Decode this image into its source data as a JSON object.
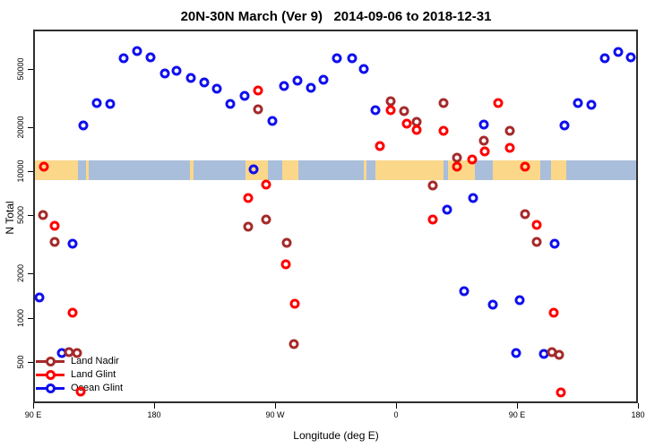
{
  "title": "20N-30N March (Ver 9)   2014-09-06 to 2018-12-31",
  "legend": {
    "items": [
      {
        "label": "Land Nadir",
        "color": "#A52A2A"
      },
      {
        "label": "Land Glint",
        "color": "#FF0000"
      },
      {
        "label": "Ocean Glint",
        "color": "#0F0FEE"
      }
    ]
  },
  "chart_data": {
    "type": "scatter",
    "title": "20N-30N March (Ver 9)   2014-09-06 to 2018-12-31",
    "xlabel": "Longitude (deg E)",
    "ylabel": "N Total",
    "x_axis": {
      "range_deg": [
        90,
        540
      ],
      "ticks": [
        {
          "lon": 90,
          "label": "90 E"
        },
        {
          "lon": 180,
          "label": "180"
        },
        {
          "lon": 270,
          "label": "90 W"
        },
        {
          "lon": 360,
          "label": "0"
        },
        {
          "lon": 450,
          "label": "90 E"
        },
        {
          "lon": 540,
          "label": "180"
        }
      ]
    },
    "y_axis": {
      "scale": "log10",
      "ticks": [
        500,
        1000,
        2000,
        5000,
        10000,
        20000,
        50000
      ],
      "range": [
        260,
        92000
      ]
    },
    "map_band": {
      "description": "20N-30N latitude land/ocean strip",
      "value_range": [
        8900,
        12200
      ],
      "ocean_color": "#A9BEDB",
      "land_color": "#FBD78A",
      "land_segments_deg": [
        [
          90,
          122
        ],
        [
          128,
          130
        ],
        [
          205,
          208
        ],
        [
          246.5,
          263.5
        ],
        [
          274,
          286
        ],
        [
          334.5,
          336.5
        ],
        [
          343,
          394
        ],
        [
          397,
          417.5
        ],
        [
          430.5,
          466
        ],
        [
          474,
          485.5
        ]
      ]
    },
    "series": [
      {
        "name": "Ocean Glint",
        "color": "#0F0FEE",
        "points": [
          [
            126,
            21100
          ],
          [
            136,
            30000
          ],
          [
            146,
            29500
          ],
          [
            156,
            60500
          ],
          [
            166,
            68000
          ],
          [
            176,
            61400
          ],
          [
            186.7,
            47600
          ],
          [
            195.3,
            49700
          ],
          [
            206,
            44400
          ],
          [
            216,
            41400
          ],
          [
            225.3,
            37500
          ],
          [
            235.3,
            29500
          ],
          [
            246,
            33500
          ],
          [
            266.7,
            22600
          ],
          [
            275.3,
            39100
          ],
          [
            285.3,
            42600
          ],
          [
            295.3,
            38000
          ],
          [
            304.7,
            43200
          ],
          [
            314.7,
            60500
          ],
          [
            326,
            60500
          ],
          [
            334.7,
            51100
          ],
          [
            343.3,
            26800
          ],
          [
            252.7,
            10600
          ],
          [
            424,
            21400
          ],
          [
            484,
            21100
          ],
          [
            494,
            30000
          ],
          [
            504,
            29200
          ],
          [
            514,
            60500
          ],
          [
            524,
            66900
          ],
          [
            533.3,
            61400
          ],
          [
            416,
            6740
          ],
          [
            396.7,
            5600
          ],
          [
            476.7,
            3290
          ],
          [
            118,
            3290
          ],
          [
            93.3,
            1410
          ],
          [
            409.3,
            1570
          ],
          [
            430.7,
            1270
          ],
          [
            450.7,
            1360
          ],
          [
            110,
            589
          ],
          [
            448,
            589
          ],
          [
            468.7,
            580
          ]
        ]
      },
      {
        "name": "Land Nadir",
        "color": "#A52A2A",
        "points": [
          [
            256,
            27200
          ],
          [
            354.7,
            30900
          ],
          [
            364.7,
            26400
          ],
          [
            374,
            22300
          ],
          [
            394,
            30000
          ],
          [
            443.3,
            19400
          ],
          [
            424,
            16600
          ],
          [
            404,
            12700
          ],
          [
            386,
            8200
          ],
          [
            454.7,
            5240
          ],
          [
            96,
            5170
          ],
          [
            262,
            4810
          ],
          [
            248.7,
            4300
          ],
          [
            104.7,
            3390
          ],
          [
            277.3,
            3340
          ],
          [
            463.3,
            3390
          ],
          [
            282.7,
            680
          ],
          [
            115.3,
            597
          ],
          [
            121.3,
            589
          ],
          [
            474.7,
            597
          ],
          [
            480,
            573
          ]
        ]
      },
      {
        "name": "Land Glint",
        "color": "#FF0000",
        "points": [
          [
            256,
            36500
          ],
          [
            354.7,
            26800
          ],
          [
            366.7,
            21700
          ],
          [
            374,
            19700
          ],
          [
            394,
            19400
          ],
          [
            434.7,
            30000
          ],
          [
            443.3,
            14800
          ],
          [
            424.7,
            14000
          ],
          [
            415.3,
            12300
          ],
          [
            346.7,
            15300
          ],
          [
            96.7,
            11000
          ],
          [
            404,
            11000
          ],
          [
            454.7,
            11000
          ],
          [
            262,
            8300
          ],
          [
            248.7,
            6740
          ],
          [
            104.7,
            4360
          ],
          [
            386,
            4810
          ],
          [
            463.3,
            4430
          ],
          [
            276.7,
            2390
          ],
          [
            283.3,
            1290
          ],
          [
            118,
            1110
          ],
          [
            476,
            1110
          ],
          [
            124,
            325
          ],
          [
            481.3,
            320
          ]
        ]
      }
    ]
  }
}
